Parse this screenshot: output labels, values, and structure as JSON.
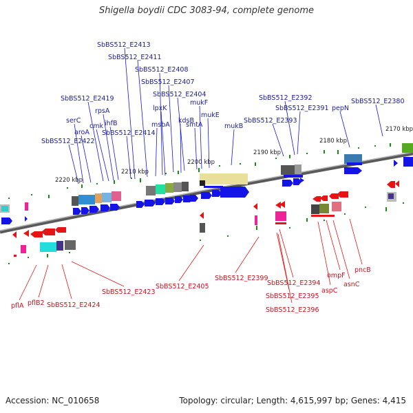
{
  "title": "Shigella boydii CDC 3083-94, complete genome",
  "footer": {
    "accession": "Accession: NC_010658",
    "summary": "Topology: circular; Length: 4,615,997 bp; Genes: 4,415"
  },
  "colors": {
    "forward": "#1414e6",
    "reverse": "#e61414",
    "forward_label": "#1a1aa8",
    "reverse_label": "#c8141e",
    "backbone": "#808080"
  },
  "kbp_labels": [
    "2220 kbp",
    "2210 kbp",
    "2200 kbp",
    "2190 kbp",
    "2180 kbp",
    "2170 kbp"
  ],
  "forward_genes": [
    "SbBS512_E2413",
    "SbBS512_E2411",
    "SbBS512_E2408",
    "SbBS512_E2407",
    "SbBS512_E2404",
    "SbBS512_E2419",
    "rpsA",
    "ihfB",
    "cmk",
    "serC",
    "aroA",
    "SbBS512_E2422",
    "SbBS512_E2414",
    "msbA",
    "lpxK",
    "kdsB",
    "mukF",
    "mukE",
    "smtA",
    "mukB",
    "SbBS512_E2392",
    "SbBS512_E2391",
    "SbBS512_E2393",
    "pepN",
    "SbBS512_E2380"
  ],
  "reverse_genes": [
    "pflA",
    "pflB2",
    "SbBS512_E2424",
    "SbBS512_E2423",
    "SbBS512_E2405",
    "SbBS512_E2399",
    "SbBS512_E2394",
    "SbBS512_E2395",
    "SbBS512_E2396",
    "ompF",
    "aspC",
    "asnC",
    "pncB"
  ]
}
